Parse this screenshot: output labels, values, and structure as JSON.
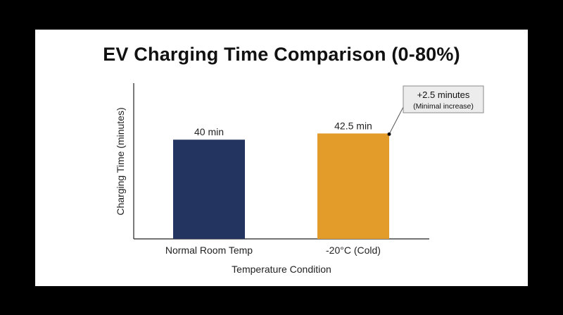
{
  "chart_data": {
    "type": "bar",
    "title": "EV Charging Time Comparison (0-80%)",
    "xlabel": "Temperature Condition",
    "ylabel": "Charging Time (minutes)",
    "categories": [
      "Normal Room Temp",
      "-20°C (Cold)"
    ],
    "values": [
      40,
      42.5
    ],
    "data_labels": [
      "40 min",
      "42.5 min"
    ],
    "colors": [
      "#22345f",
      "#e39b2a"
    ],
    "ylim": [
      0,
      50
    ],
    "grid": false,
    "annotation": {
      "line1": "+2.5 minutes",
      "line2": "(Minimal increase)",
      "target_category": "-20°C (Cold)"
    }
  }
}
